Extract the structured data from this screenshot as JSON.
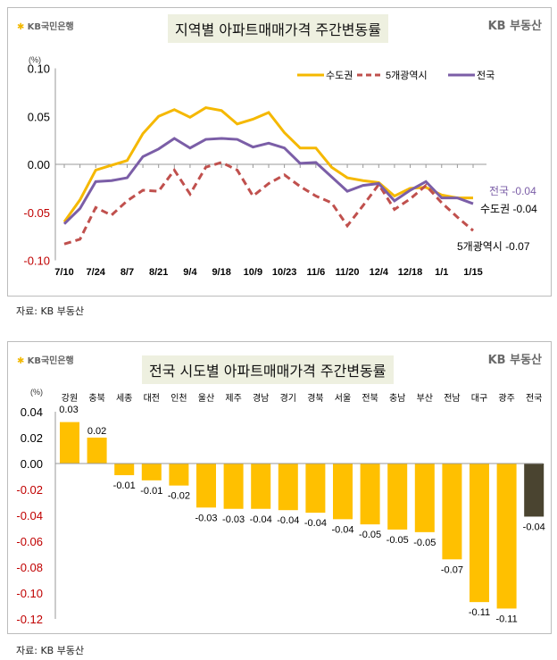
{
  "top": {
    "bank_logo": "KB국민은행",
    "brand_logo": "KB 부동산",
    "title": "지역별 아파트매매가격 주간변동률",
    "caption": "자료: KB 부동산"
  },
  "bottom": {
    "bank_logo": "KB국민은행",
    "brand_logo": "KB 부동산",
    "title": "전국 시도별 아파트매매가격 주간변동률",
    "caption": "자료: KB 부동산"
  },
  "chart_data": [
    {
      "type": "line",
      "ylabel": "(%)",
      "ylim": [
        -0.1,
        0.1
      ],
      "yticks": [
        "0.10",
        "0.05",
        "0.00",
        "-0.05",
        "-0.10"
      ],
      "x_tick_labels": [
        "7/10",
        "7/24",
        "8/7",
        "8/21",
        "9/4",
        "9/18",
        "10/9",
        "10/23",
        "11/6",
        "11/20",
        "12/4",
        "12/18",
        "1/1",
        "1/15"
      ],
      "legend_position": "top-right",
      "series": [
        {
          "name": "수도권",
          "color": "#f5b800",
          "dash": false,
          "values": [
            -0.06,
            -0.037,
            -0.006,
            -0.001,
            0.004,
            0.032,
            0.05,
            0.057,
            0.049,
            0.059,
            0.056,
            0.042,
            0.047,
            0.054,
            0.033,
            0.017,
            0.017,
            -0.003,
            -0.014,
            -0.017,
            -0.019,
            -0.033,
            -0.025,
            -0.024,
            -0.032,
            -0.035,
            -0.035
          ],
          "end_label": "수도권 -0.04"
        },
        {
          "name": "5개광역시",
          "color": "#c0504d",
          "dash": true,
          "values": [
            -0.083,
            -0.078,
            -0.045,
            -0.053,
            -0.038,
            -0.027,
            -0.028,
            -0.006,
            -0.031,
            -0.003,
            0.002,
            -0.006,
            -0.033,
            -0.02,
            -0.011,
            -0.023,
            -0.033,
            -0.04,
            -0.064,
            -0.043,
            -0.021,
            -0.047,
            -0.036,
            -0.022,
            -0.04,
            -0.055,
            -0.069
          ],
          "end_label": "5개광역시 -0.07"
        },
        {
          "name": "전국",
          "color": "#7b5ea7",
          "dash": false,
          "values": [
            -0.062,
            -0.046,
            -0.018,
            -0.017,
            -0.014,
            0.008,
            0.016,
            0.027,
            0.017,
            0.026,
            0.027,
            0.026,
            0.018,
            0.022,
            0.017,
            0.001,
            0.002,
            -0.013,
            -0.028,
            -0.022,
            -0.02,
            -0.038,
            -0.027,
            -0.018,
            -0.035,
            -0.035,
            -0.041
          ],
          "end_label": "전국 -0.04"
        }
      ]
    },
    {
      "type": "bar",
      "ylabel": "(%)",
      "ylim": [
        -0.12,
        0.04
      ],
      "yticks": [
        "0.04",
        "0.02",
        "0.00",
        "-0.02",
        "-0.04",
        "-0.06",
        "-0.08",
        "-0.10",
        "-0.12"
      ],
      "categories": [
        "강원",
        "충북",
        "세종",
        "대전",
        "인천",
        "울산",
        "제주",
        "경남",
        "경기",
        "경북",
        "서울",
        "전북",
        "충남",
        "부산",
        "전남",
        "대구",
        "광주",
        "전국"
      ],
      "values": [
        0.032,
        0.02,
        -0.009,
        -0.013,
        -0.017,
        -0.034,
        -0.035,
        -0.035,
        -0.036,
        -0.038,
        -0.043,
        -0.047,
        -0.051,
        -0.053,
        -0.074,
        -0.107,
        -0.112,
        -0.041
      ],
      "data_labels": [
        "0.03",
        "0.02",
        "-0.01",
        "-0.01",
        "-0.02",
        "-0.03",
        "-0.03",
        "-0.04",
        "-0.04",
        "-0.04",
        "-0.04",
        "-0.05",
        "-0.05",
        "-0.05",
        "-0.07",
        "-0.11",
        "-0.11",
        "-0.04"
      ],
      "colors": {
        "region": "#ffc000",
        "national": "#4a4430"
      }
    }
  ],
  "colors": {
    "negative_tick": "#c00000",
    "positive_tick": "#000000"
  }
}
